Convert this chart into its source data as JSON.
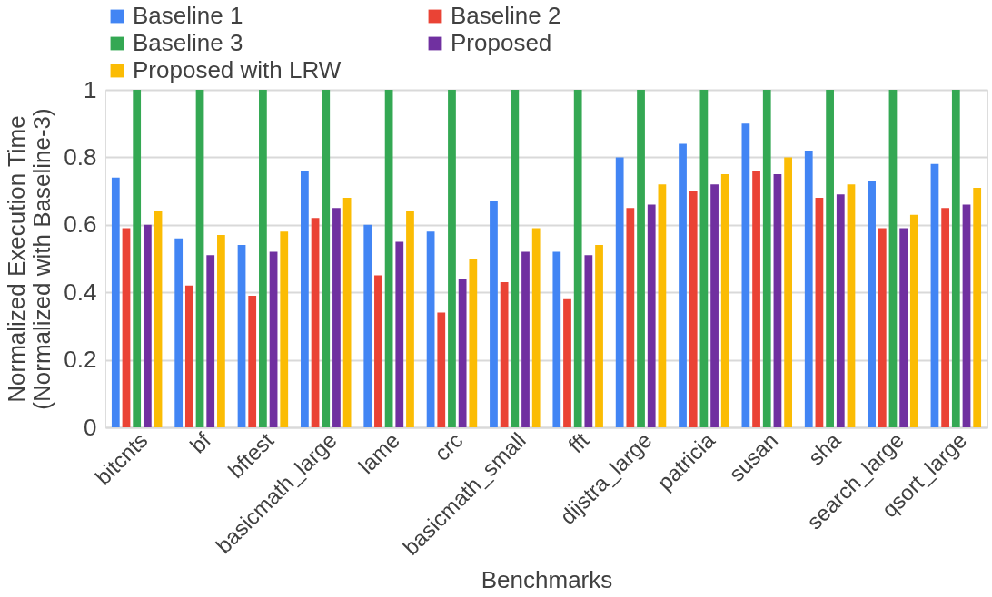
{
  "chart_data": {
    "type": "bar",
    "xlabel": "Benchmarks",
    "ylabel": "Normalized Execution Time\n(Normalized with Baseline-3)",
    "categories": [
      "bitcnts",
      "bf",
      "bftest",
      "basicmath_large",
      "lame",
      "crc",
      "basicmath_small",
      "fft",
      "dijstra_large",
      "patricia",
      "susan",
      "sha",
      "search_large",
      "qsort_large"
    ],
    "series": [
      {
        "name": "Baseline 1",
        "color": "#4285f4",
        "values": [
          0.74,
          0.56,
          0.54,
          0.76,
          0.6,
          0.58,
          0.67,
          0.52,
          0.8,
          0.84,
          0.9,
          0.82,
          0.73,
          0.78
        ]
      },
      {
        "name": "Baseline 2",
        "color": "#ea4335",
        "values": [
          0.59,
          0.42,
          0.39,
          0.62,
          0.45,
          0.34,
          0.43,
          0.38,
          0.65,
          0.7,
          0.76,
          0.68,
          0.59,
          0.65
        ]
      },
      {
        "name": "Baseline 3",
        "color": "#34a853",
        "values": [
          1,
          1,
          1,
          1,
          1,
          1,
          1,
          1,
          1,
          1,
          1,
          1,
          1,
          1
        ]
      },
      {
        "name": "Proposed",
        "color": "#7030a0",
        "values": [
          0.6,
          0.51,
          0.52,
          0.65,
          0.55,
          0.44,
          0.52,
          0.51,
          0.66,
          0.72,
          0.75,
          0.69,
          0.59,
          0.66
        ]
      },
      {
        "name": "Proposed with LRW",
        "color": "#fbbc04",
        "values": [
          0.64,
          0.57,
          0.58,
          0.68,
          0.64,
          0.5,
          0.59,
          0.54,
          0.72,
          0.75,
          0.8,
          0.72,
          0.63,
          0.71
        ]
      }
    ],
    "ylim": [
      0,
      1
    ],
    "yticks": [
      0,
      0.2,
      0.4,
      0.6,
      0.8,
      1
    ],
    "grid": "y",
    "legend": "top"
  }
}
